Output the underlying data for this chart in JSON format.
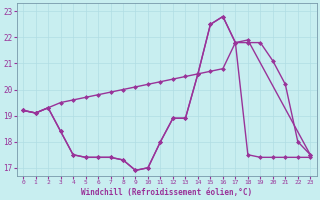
{
  "xlabel": "Windchill (Refroidissement éolien,°C)",
  "bg_color": "#c8eef0",
  "line_color": "#993399",
  "grid_color": "#b0dde4",
  "xlim": [
    -0.5,
    23.5
  ],
  "ylim": [
    16.7,
    23.3
  ],
  "yticks": [
    17,
    18,
    19,
    20,
    21,
    22,
    23
  ],
  "xticks": [
    0,
    1,
    2,
    3,
    4,
    5,
    6,
    7,
    8,
    9,
    10,
    11,
    12,
    13,
    14,
    15,
    16,
    17,
    18,
    19,
    20,
    21,
    22,
    23
  ],
  "series1_x": [
    0,
    1,
    2,
    3,
    4,
    5,
    6,
    7,
    8,
    9,
    10,
    11,
    12,
    13,
    14,
    15,
    16,
    17,
    18,
    19,
    20,
    21,
    22,
    23
  ],
  "series1_y": [
    19.2,
    19.1,
    19.3,
    18.4,
    17.5,
    17.4,
    17.4,
    17.4,
    17.3,
    16.9,
    17.0,
    18.0,
    18.9,
    18.9,
    20.6,
    22.5,
    22.8,
    21.8,
    21.8,
    21.8,
    21.1,
    20.2,
    18.0,
    17.5
  ],
  "series2_x": [
    0,
    1,
    3,
    4,
    5,
    6,
    7,
    8,
    9,
    10,
    11,
    12,
    13,
    14,
    15,
    16,
    17,
    18,
    23
  ],
  "series2_y": [
    19.2,
    19.1,
    19.5,
    19.6,
    19.7,
    19.8,
    19.9,
    20.0,
    20.1,
    20.2,
    20.3,
    20.4,
    20.5,
    20.6,
    20.7,
    20.8,
    21.8,
    21.9,
    17.5
  ],
  "series3_x": [
    0,
    1,
    2,
    3,
    4,
    5,
    6,
    7,
    8,
    9,
    10,
    11,
    12,
    13,
    14,
    15,
    16,
    17,
    18,
    19,
    20,
    21,
    22,
    23
  ],
  "series3_y": [
    19.2,
    19.1,
    19.3,
    18.4,
    17.5,
    17.4,
    17.4,
    17.4,
    17.3,
    16.9,
    17.0,
    18.0,
    18.9,
    18.9,
    20.6,
    22.5,
    22.8,
    21.8,
    17.5,
    17.4,
    17.4,
    17.4,
    17.4,
    17.4
  ],
  "marker": "D",
  "marker_size": 2.5,
  "linewidth": 1.0
}
